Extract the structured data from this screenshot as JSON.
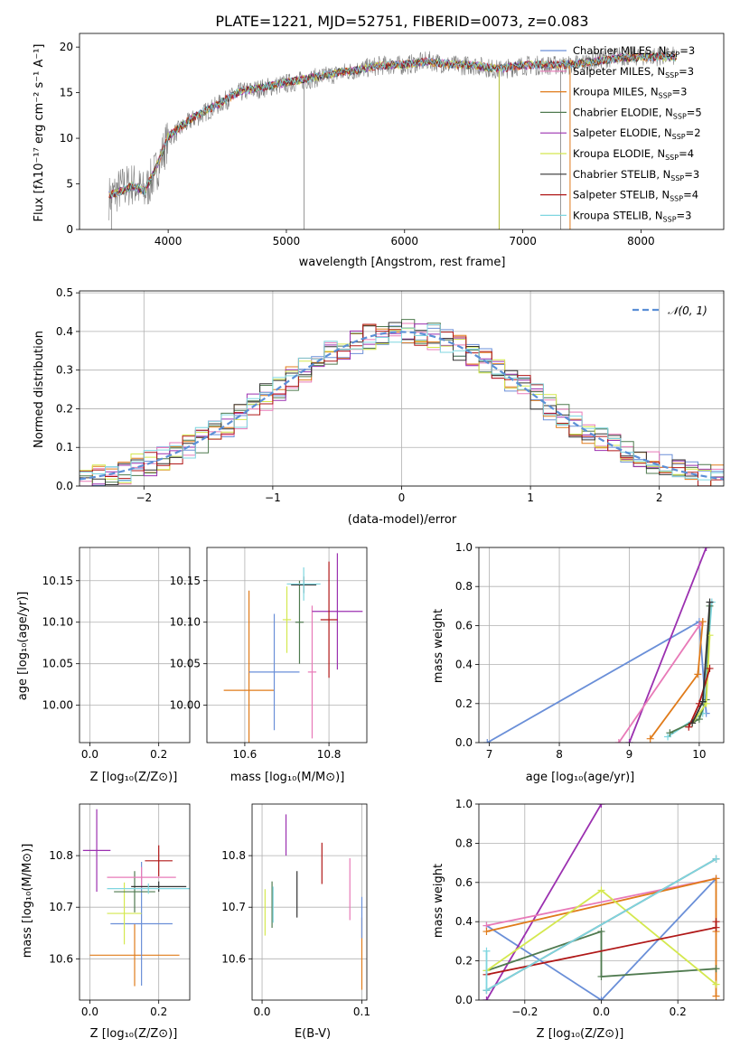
{
  "chart_data": [
    {
      "id": "spectrum",
      "type": "line",
      "title": "PLATE=1221, MJD=52751, FIBERID=0073, z=0.083",
      "xlabel": "wavelength [Angstrom, rest frame]",
      "ylabel": "Flux [fλ10⁻¹⁷ erg cm⁻² s⁻¹ A⁻¹]",
      "xlim": [
        3250,
        8700
      ],
      "ylim": [
        0,
        21.5
      ],
      "xticks": [
        4000,
        5000,
        6000,
        7000,
        8000
      ],
      "yticks": [
        0,
        5,
        10,
        15,
        20
      ],
      "legend_position": "upper-right",
      "x": [
        3500,
        3600,
        3700,
        3800,
        3900,
        4000,
        4200,
        4400,
        4600,
        4800,
        5000,
        5200,
        5400,
        5600,
        5800,
        6000,
        6200,
        6400,
        6600,
        6800,
        7000,
        7200,
        7400,
        7600,
        7800,
        8000,
        8200,
        8300
      ],
      "observed_flux": [
        3.5,
        4.5,
        5.0,
        4.0,
        6.5,
        10.0,
        12.0,
        13.5,
        15.0,
        15.5,
        16.0,
        16.5,
        17.0,
        17.5,
        18.0,
        18.0,
        18.5,
        18.0,
        18.0,
        17.5,
        18.0,
        18.0,
        18.0,
        18.5,
        19.0,
        19.0,
        19.0,
        19.0
      ],
      "model_flux": [
        3.8,
        4.2,
        4.8,
        4.2,
        6.8,
        10.2,
        12.2,
        13.6,
        15.1,
        15.6,
        16.1,
        16.6,
        17.1,
        17.5,
        18.0,
        18.1,
        18.4,
        18.1,
        18.0,
        17.6,
        18.0,
        18.1,
        18.1,
        18.4,
        18.8,
        18.9,
        18.9,
        18.9
      ],
      "series": [
        {
          "name": "Chabrier MILES, N",
          "sub": "SSP",
          "suffix": "=3",
          "color": "#6a8fd8"
        },
        {
          "name": "Salpeter MILES, N",
          "sub": "SSP",
          "suffix": "=3",
          "color": "#e87ab8"
        },
        {
          "name": "Kroupa MILES, N",
          "sub": "SSP",
          "suffix": "=3",
          "color": "#e07b1a"
        },
        {
          "name": "Chabrier ELODIE, N",
          "sub": "SSP",
          "suffix": "=5",
          "color": "#4f7a4f"
        },
        {
          "name": "Salpeter ELODIE, N",
          "sub": "SSP",
          "suffix": "=2",
          "color": "#9b30b0"
        },
        {
          "name": "Kroupa ELODIE, N",
          "sub": "SSP",
          "suffix": "=4",
          "color": "#d4e84f"
        },
        {
          "name": "Chabrier STELIB, N",
          "sub": "SSP",
          "suffix": "=3",
          "color": "#333333"
        },
        {
          "name": "Salpeter STELIB, N",
          "sub": "SSP",
          "suffix": "=4",
          "color": "#b01818"
        },
        {
          "name": "Kroupa STELIB, N",
          "sub": "SSP",
          "suffix": "=3",
          "color": "#7fd6e0"
        }
      ]
    },
    {
      "id": "residuals",
      "type": "line",
      "xlabel": "(data-model)/error",
      "ylabel": "Normed distribution",
      "xlim": [
        -2.5,
        2.5
      ],
      "ylim": [
        0,
        0.505
      ],
      "xticks": [
        -2,
        -1,
        0,
        1,
        2
      ],
      "yticks": [
        0.0,
        0.1,
        0.2,
        0.3,
        0.4,
        0.5
      ],
      "grid": true,
      "legend_position": "upper-right",
      "reference_label": "𝒩(0, 1)",
      "reference_color": "#5b8fd6",
      "bins": [
        -2.5,
        -2.4,
        -2.3,
        -2.2,
        -2.1,
        -2.0,
        -1.9,
        -1.8,
        -1.7,
        -1.6,
        -1.5,
        -1.4,
        -1.3,
        -1.2,
        -1.1,
        -1.0,
        -0.9,
        -0.8,
        -0.7,
        -0.6,
        -0.5,
        -0.4,
        -0.3,
        -0.2,
        -0.1,
        0.0,
        0.1,
        0.2,
        0.3,
        0.4,
        0.5,
        0.6,
        0.7,
        0.8,
        0.9,
        1.0,
        1.1,
        1.2,
        1.3,
        1.4,
        1.5,
        1.6,
        1.7,
        1.8,
        1.9,
        2.0,
        2.1,
        2.2,
        2.3,
        2.4,
        2.5
      ]
    },
    {
      "id": "age_vs_Z",
      "type": "scatter",
      "xlabel": "Z [log₁₀(Z/Z⊙)]",
      "ylabel": "age  [log₁₀(age/yr)]",
      "xlim": [
        -0.03,
        0.29
      ],
      "ylim": [
        9.955,
        10.19
      ],
      "xticks": [
        0.0,
        0.2
      ],
      "yticks": [
        10.0,
        10.05,
        10.1,
        10.15
      ],
      "points": [
        {
          "x": 0.16,
          "y": 10.018,
          "xerr": 0.2,
          "yerr": 0.13,
          "color": "#e07b1a"
        },
        {
          "x": 0.15,
          "y": 10.04,
          "xerr": 0.1,
          "yerr": 0.08,
          "color": "#e87ab8"
        },
        {
          "x": 0.0,
          "y": 10.113,
          "xerr": 0.02,
          "yerr": 0.07,
          "color": "#9b30b0"
        },
        {
          "x": 0.09,
          "y": 10.101,
          "xerr": 0.04,
          "yerr": 0.04,
          "color": "#d4e84f"
        },
        {
          "x": 0.11,
          "y": 10.1,
          "xerr": 0.05,
          "yerr": 0.03,
          "color": "#4f7a4f"
        },
        {
          "x": 0.2,
          "y": 10.104,
          "xerr": 0.05,
          "yerr": 0.07,
          "color": "#b01818"
        },
        {
          "x": 0.18,
          "y": 10.145,
          "xerr": 0.1,
          "yerr": 0.01,
          "color": "#333333"
        },
        {
          "x": 0.15,
          "y": 10.146,
          "xerr": 0.14,
          "yerr": 0.02,
          "color": "#7fd6e0"
        },
        {
          "x": 0.15,
          "y": 10.04,
          "xerr": 0.01,
          "yerr": 0.08,
          "color": "#6a8fd8"
        }
      ]
    },
    {
      "id": "age_vs_mass",
      "type": "scatter",
      "xlabel": "mass [log₁₀(M/M⊙)]",
      "xlim": [
        10.51,
        10.89
      ],
      "ylim": [
        9.955,
        10.19
      ],
      "xticks": [
        10.6,
        10.8
      ],
      "yticks": [
        10.0,
        10.05,
        10.1,
        10.15
      ],
      "points": [
        {
          "x": 10.61,
          "y": 10.018,
          "xerr": 0.06,
          "yerr": 0.12,
          "color": "#e07b1a"
        },
        {
          "x": 10.67,
          "y": 10.04,
          "xerr": 0.06,
          "yerr": 0.07,
          "color": "#6a8fd8"
        },
        {
          "x": 10.76,
          "y": 10.04,
          "xerr": 0.01,
          "yerr": 0.08,
          "color": "#e87ab8"
        },
        {
          "x": 10.82,
          "y": 10.113,
          "xerr": 0.06,
          "yerr": 0.07,
          "color": "#9b30b0"
        },
        {
          "x": 10.73,
          "y": 10.1,
          "xerr": 0.01,
          "yerr": 0.05,
          "color": "#4f7a4f"
        },
        {
          "x": 10.7,
          "y": 10.103,
          "xerr": 0.01,
          "yerr": 0.04,
          "color": "#d4e84f"
        },
        {
          "x": 10.8,
          "y": 10.103,
          "xerr": 0.02,
          "yerr": 0.07,
          "color": "#b01818"
        },
        {
          "x": 10.74,
          "y": 10.145,
          "xerr": 0.03,
          "yerr": 0.01,
          "color": "#333333"
        },
        {
          "x": 10.74,
          "y": 10.146,
          "xerr": 0.04,
          "yerr": 0.02,
          "color": "#7fd6e0"
        }
      ]
    },
    {
      "id": "massweight_vs_age",
      "type": "line",
      "xlabel": "age  [log₁₀(age/yr)]",
      "ylabel": "mass weight",
      "xlim": [
        6.85,
        10.35
      ],
      "ylim": [
        0.0,
        1.0
      ],
      "xticks": [
        7,
        8,
        9,
        10
      ],
      "yticks": [
        0.0,
        0.2,
        0.4,
        0.6,
        0.8,
        1.0
      ],
      "grid": true,
      "series": [
        {
          "color": "#6a8fd8",
          "x": [
            6.97,
            10.0,
            10.1
          ],
          "y": [
            0.0,
            0.62,
            0.15
          ]
        },
        {
          "color": "#9b30b0",
          "x": [
            9.0,
            10.1
          ],
          "y": [
            0.0,
            1.0
          ]
        },
        {
          "color": "#e87ab8",
          "x": [
            8.85,
            10.0,
            10.05
          ],
          "y": [
            0.0,
            0.6,
            0.62
          ]
        },
        {
          "color": "#e07b1a",
          "x": [
            9.3,
            9.98,
            10.05
          ],
          "y": [
            0.02,
            0.35,
            0.62
          ]
        },
        {
          "color": "#7fd6e0",
          "x": [
            9.55,
            10.05,
            10.18
          ],
          "y": [
            0.03,
            0.15,
            0.72
          ]
        },
        {
          "color": "#4f7a4f",
          "x": [
            9.58,
            10.0,
            10.1,
            10.15
          ],
          "y": [
            0.05,
            0.12,
            0.22,
            0.7
          ]
        },
        {
          "color": "#d4e84f",
          "x": [
            9.9,
            10.1,
            10.15
          ],
          "y": [
            0.1,
            0.2,
            0.55
          ]
        },
        {
          "color": "#b01818",
          "x": [
            9.85,
            10.0,
            10.15
          ],
          "y": [
            0.08,
            0.2,
            0.38
          ]
        },
        {
          "color": "#333333",
          "x": [
            9.9,
            10.05,
            10.15
          ],
          "y": [
            0.1,
            0.21,
            0.72
          ]
        }
      ]
    },
    {
      "id": "mass_vs_Z",
      "type": "scatter",
      "xlabel": "Z [log₁₀(Z/Z⊙)]",
      "ylabel": "mass [log₁₀(M/M⊙)]",
      "xlim": [
        -0.03,
        0.29
      ],
      "ylim": [
        10.52,
        10.9
      ],
      "xticks": [
        0.0,
        0.2
      ],
      "yticks": [
        10.6,
        10.7,
        10.8
      ],
      "points": [
        {
          "x": 0.02,
          "y": 10.81,
          "xerr": 0.04,
          "yerr": 0.08,
          "color": "#9b30b0"
        },
        {
          "x": 0.13,
          "y": 10.607,
          "xerr": 0.13,
          "yerr": 0.06,
          "color": "#e07b1a"
        },
        {
          "x": 0.15,
          "y": 10.668,
          "xerr": 0.09,
          "yerr": 0.12,
          "color": "#6a8fd8"
        },
        {
          "x": 0.1,
          "y": 10.688,
          "xerr": 0.05,
          "yerr": 0.06,
          "color": "#d4e84f"
        },
        {
          "x": 0.13,
          "y": 10.73,
          "xerr": 0.06,
          "yerr": 0.04,
          "color": "#4f7a4f"
        },
        {
          "x": 0.15,
          "y": 10.758,
          "xerr": 0.1,
          "yerr": 0.02,
          "color": "#e87ab8"
        },
        {
          "x": 0.2,
          "y": 10.79,
          "xerr": 0.04,
          "yerr": 0.03,
          "color": "#b01818"
        },
        {
          "x": 0.2,
          "y": 10.74,
          "xerr": 0.08,
          "yerr": 0.01,
          "color": "#333333"
        },
        {
          "x": 0.17,
          "y": 10.736,
          "xerr": 0.12,
          "yerr": 0.01,
          "color": "#7fd6e0"
        }
      ]
    },
    {
      "id": "mass_vs_ebv",
      "type": "scatter",
      "xlabel": "E(B-V)",
      "xlim": [
        -0.01,
        0.105
      ],
      "ylim": [
        10.52,
        10.9
      ],
      "xticks": [
        0.0,
        0.1
      ],
      "yticks": [
        10.6,
        10.7,
        10.8
      ],
      "points": [
        {
          "x": 0.024,
          "y": 10.84,
          "xerr": 0,
          "yerr": 0.04,
          "color": "#9b30b0"
        },
        {
          "x": 0.06,
          "y": 10.785,
          "xerr": 0,
          "yerr": 0.04,
          "color": "#b01818"
        },
        {
          "x": 0.035,
          "y": 10.725,
          "xerr": 0,
          "yerr": 0.045,
          "color": "#333333"
        },
        {
          "x": 0.01,
          "y": 10.705,
          "xerr": 0,
          "yerr": 0.045,
          "color": "#4f7a4f"
        },
        {
          "x": 0.003,
          "y": 10.69,
          "xerr": 0,
          "yerr": 0.045,
          "color": "#d4e84f"
        },
        {
          "x": 0.011,
          "y": 10.705,
          "xerr": 0,
          "yerr": 0.035,
          "color": "#7fd6e0"
        },
        {
          "x": 0.088,
          "y": 10.735,
          "xerr": 0,
          "yerr": 0.06,
          "color": "#e87ab8"
        },
        {
          "x": 0.1,
          "y": 10.61,
          "xerr": 0,
          "yerr": 0.07,
          "color": "#e07b1a"
        },
        {
          "x": 0.1,
          "y": 10.68,
          "xerr": 0,
          "yerr": 0.04,
          "color": "#6a8fd8"
        }
      ]
    },
    {
      "id": "massweight_vs_Z",
      "type": "line",
      "xlabel": "Z [log₁₀(Z/Z⊙)]",
      "ylabel": "mass weight",
      "xlim": [
        -0.32,
        0.32
      ],
      "ylim": [
        0.0,
        1.0
      ],
      "xticks": [
        -0.2,
        0.0,
        0.2
      ],
      "yticks": [
        0.0,
        0.2,
        0.4,
        0.6,
        0.8,
        1.0
      ],
      "grid": true,
      "series": [
        {
          "color": "#6a8fd8",
          "x": [
            -0.3,
            0.0,
            0.3
          ],
          "y": [
            0.38,
            0.0,
            0.62
          ]
        },
        {
          "color": "#9b30b0",
          "x": [
            -0.3,
            0.0
          ],
          "y": [
            0.0,
            1.0
          ]
        },
        {
          "color": "#e87ab8",
          "x": [
            -0.3,
            0.3
          ],
          "y": [
            0.38,
            0.62
          ]
        },
        {
          "color": "#e07b1a",
          "x": [
            -0.3,
            0.3,
            0.3,
            0.3
          ],
          "y": [
            0.35,
            0.62,
            0.35,
            0.02
          ]
        },
        {
          "color": "#4f7a4f",
          "x": [
            -0.3,
            0.0,
            0.0,
            0.3
          ],
          "y": [
            0.15,
            0.35,
            0.12,
            0.16
          ]
        },
        {
          "color": "#d4e84f",
          "x": [
            -0.3,
            0.0,
            0.3
          ],
          "y": [
            0.15,
            0.56,
            0.08
          ]
        },
        {
          "color": "#b01818",
          "x": [
            -0.3,
            0.3,
            0.3
          ],
          "y": [
            0.13,
            0.37,
            0.4
          ]
        },
        {
          "color": "#333333",
          "x": [
            -0.3,
            0.3
          ],
          "y": [
            0.05,
            0.72
          ]
        },
        {
          "color": "#7fd6e0",
          "x": [
            -0.3,
            -0.3,
            0.3
          ],
          "y": [
            0.25,
            0.05,
            0.72
          ]
        }
      ]
    }
  ]
}
